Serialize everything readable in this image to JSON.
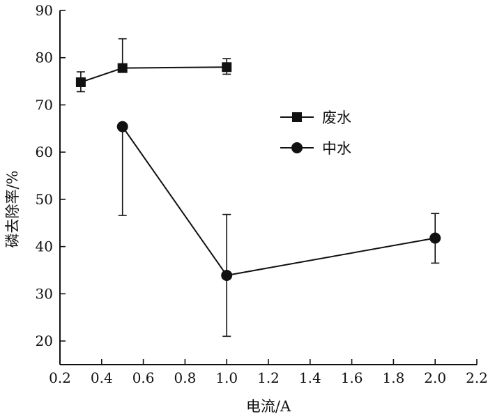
{
  "chart_data": {
    "type": "line",
    "title": "",
    "xlabel": "电流/A",
    "ylabel": "磷去除率/%",
    "xlim": [
      0.2,
      2.2
    ],
    "ylim": [
      15,
      90
    ],
    "xticks": [
      0.2,
      0.4,
      0.6,
      0.8,
      1.0,
      1.2,
      1.4,
      1.6,
      1.8,
      2.0,
      2.2
    ],
    "xtick_labels": [
      "0.2",
      "0.4",
      "0.6",
      "0.8",
      "1.0",
      "1.2",
      "1.4",
      "1.6",
      "1.8",
      "2.0",
      "2.2"
    ],
    "yticks": [
      20,
      30,
      40,
      50,
      60,
      70,
      80,
      90
    ],
    "ytick_labels": [
      "20",
      "30",
      "40",
      "50",
      "60",
      "70",
      "80",
      "90"
    ],
    "grid": false,
    "legend_position": "upper-right",
    "color": "#111111",
    "series": [
      {
        "name": "废水",
        "marker": "square",
        "x": [
          0.3,
          0.5,
          1.0
        ],
        "y": [
          74.8,
          77.8,
          78.0
        ],
        "err_low": [
          72.8,
          77.8,
          76.5
        ],
        "err_high": [
          77.0,
          84.0,
          79.8
        ]
      },
      {
        "name": "中水",
        "marker": "circle",
        "x": [
          0.5,
          1.0,
          2.0
        ],
        "y": [
          65.4,
          33.9,
          41.8
        ],
        "err_low": [
          46.6,
          21.0,
          36.5
        ],
        "err_high": [
          65.4,
          46.8,
          47.0
        ]
      }
    ]
  }
}
